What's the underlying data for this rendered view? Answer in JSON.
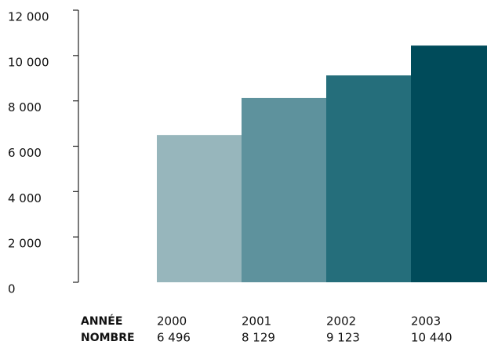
{
  "chart_data": {
    "type": "bar",
    "categories": [
      "2000",
      "2001",
      "2002",
      "2003"
    ],
    "values": [
      6496,
      8129,
      9123,
      10440
    ],
    "value_labels": [
      "6 496",
      "8 129",
      "9 123",
      "10 440"
    ],
    "colors": [
      "#97b6bc",
      "#5e929d",
      "#256e7b",
      "#004b5a"
    ],
    "category_header": "ANNÉE",
    "value_header": "NOMBRE",
    "ylim": [
      0,
      12000
    ],
    "yticks": [
      0,
      {
        "value": 2000,
        "label": "2 000"
      },
      {
        "value": 4000,
        "label": "4 000"
      },
      {
        "value": 6000,
        "label": "6 000"
      },
      {
        "value": 8000,
        "label": "8 000"
      },
      {
        "value": 10000,
        "label": "10 000"
      },
      {
        "value": 12000,
        "label": "12 000"
      }
    ],
    "grid": false
  }
}
